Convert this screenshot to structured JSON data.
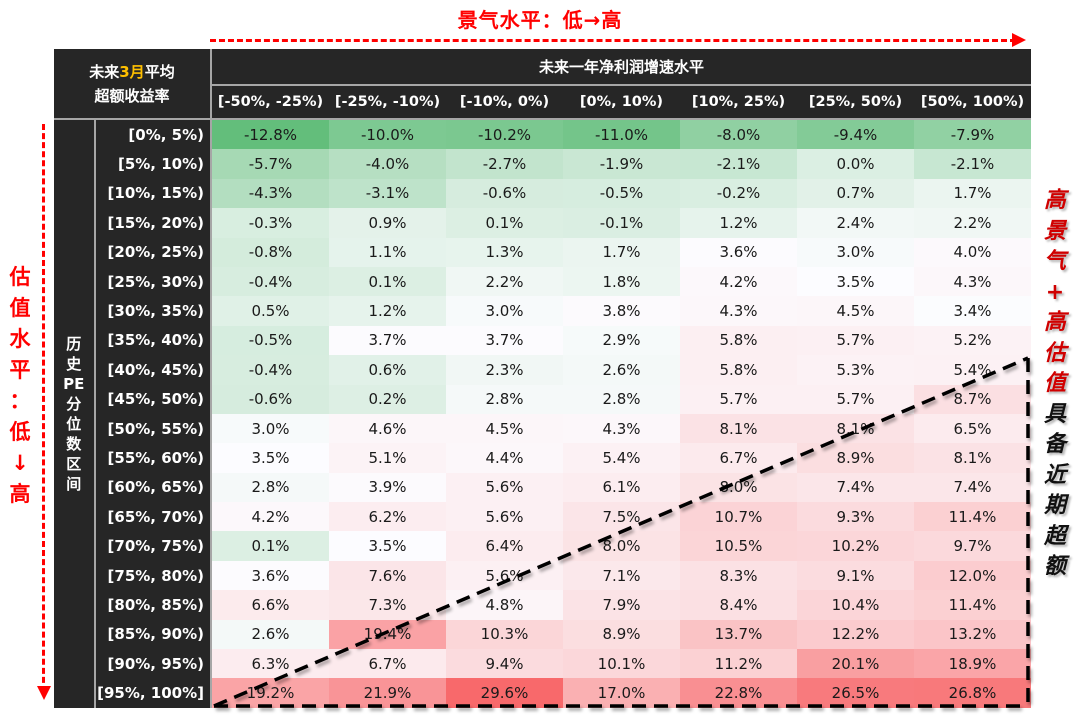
{
  "annotations": {
    "top_title": "景气水平：低→高",
    "left_title_chars": [
      "估",
      "值",
      "水",
      "平",
      "：",
      "低",
      "↓",
      "高"
    ],
    "right_label_red": [
      "高",
      "景",
      "气",
      "+",
      "高",
      "估",
      "值"
    ],
    "right_label_black": [
      "具",
      "备",
      "近",
      "期",
      "超",
      "额"
    ]
  },
  "header": {
    "corner_line1_pre": "未来",
    "corner_line1_highlight": "3月",
    "corner_line1_post": "平均",
    "corner_line2": "超额收益率",
    "main_title": "未来一年净利润增速水平",
    "row_group_label_chars": [
      "历",
      "史",
      "PE",
      "分",
      "位",
      "数",
      "区",
      "间"
    ]
  },
  "colors": {
    "header_bg": "#262626",
    "header_text": "#ffffff",
    "highlight": "#ffc000",
    "annotation_red": "#ff0000",
    "scale_min": "#63be7b",
    "scale_mid": "#fcfcff",
    "scale_max": "#f8696b"
  },
  "chart_data": {
    "type": "heatmap",
    "title": "未来3月平均超额收益率",
    "xlabel": "未来一年净利润增速水平",
    "ylabel": "历史PE分位数区间",
    "x_direction_note": "景气水平：低→高",
    "y_direction_note": "估值水平：低↓高",
    "annotation": "高景气+高估值具备近期超额",
    "columns": [
      "[-50%, -25%)",
      "[-25%, -10%)",
      "[-10%, 0%)",
      "[0%, 10%)",
      "[10%, 25%)",
      "[25%, 50%)",
      "[50%, 100%)"
    ],
    "rows": [
      "[0%, 5%)",
      "[5%, 10%)",
      "[10%, 15%)",
      "[15%, 20%)",
      "[20%, 25%)",
      "[25%, 30%)",
      "[30%, 35%)",
      "[35%, 40%)",
      "[40%, 45%)",
      "[45%, 50%)",
      "[50%, 55%)",
      "[55%, 60%)",
      "[60%, 65%)",
      "[65%, 70%)",
      "[70%, 75%)",
      "[75%, 80%)",
      "[80%, 85%)",
      "[85%, 90%)",
      "[90%, 95%)",
      "[95%, 100%]"
    ],
    "unit": "%",
    "values": [
      [
        -12.8,
        -10.0,
        -10.2,
        -11.0,
        -8.0,
        -9.4,
        -7.9
      ],
      [
        -5.7,
        -4.0,
        -2.7,
        -1.9,
        -2.1,
        0.0,
        -2.1
      ],
      [
        -4.3,
        -3.1,
        -0.6,
        -0.5,
        -0.2,
        0.7,
        1.7
      ],
      [
        -0.3,
        0.9,
        0.1,
        -0.1,
        1.2,
        2.4,
        2.2
      ],
      [
        -0.8,
        1.1,
        1.3,
        1.7,
        3.6,
        3.0,
        4.0
      ],
      [
        -0.4,
        0.1,
        2.2,
        1.8,
        4.2,
        3.5,
        4.3
      ],
      [
        0.5,
        1.2,
        3.0,
        3.8,
        4.3,
        4.5,
        3.4
      ],
      [
        -0.5,
        3.7,
        3.7,
        2.9,
        5.8,
        5.7,
        5.2
      ],
      [
        -0.4,
        0.6,
        2.3,
        2.6,
        5.8,
        5.3,
        5.4
      ],
      [
        -0.6,
        0.2,
        2.8,
        2.8,
        5.7,
        5.7,
        8.7
      ],
      [
        3.0,
        4.6,
        4.5,
        4.3,
        8.1,
        8.1,
        6.5
      ],
      [
        3.5,
        5.1,
        4.4,
        5.4,
        6.7,
        8.9,
        8.1
      ],
      [
        2.8,
        3.9,
        5.6,
        6.1,
        8.0,
        7.4,
        7.4
      ],
      [
        4.2,
        6.2,
        5.6,
        7.5,
        10.7,
        9.3,
        11.4
      ],
      [
        0.1,
        3.5,
        6.4,
        8.0,
        10.5,
        10.2,
        9.7
      ],
      [
        3.6,
        7.6,
        5.6,
        7.1,
        8.3,
        9.1,
        12.0
      ],
      [
        6.6,
        7.3,
        4.8,
        7.9,
        8.4,
        10.4,
        11.4
      ],
      [
        2.6,
        19.4,
        10.3,
        8.9,
        13.7,
        12.2,
        13.2
      ],
      [
        6.3,
        6.7,
        9.4,
        10.1,
        11.2,
        20.1,
        18.9
      ],
      [
        19.2,
        21.9,
        29.6,
        17.0,
        22.8,
        26.5,
        26.8
      ]
    ],
    "color_scale": {
      "min": -12.8,
      "mid": 3.5,
      "max": 29.6
    }
  }
}
